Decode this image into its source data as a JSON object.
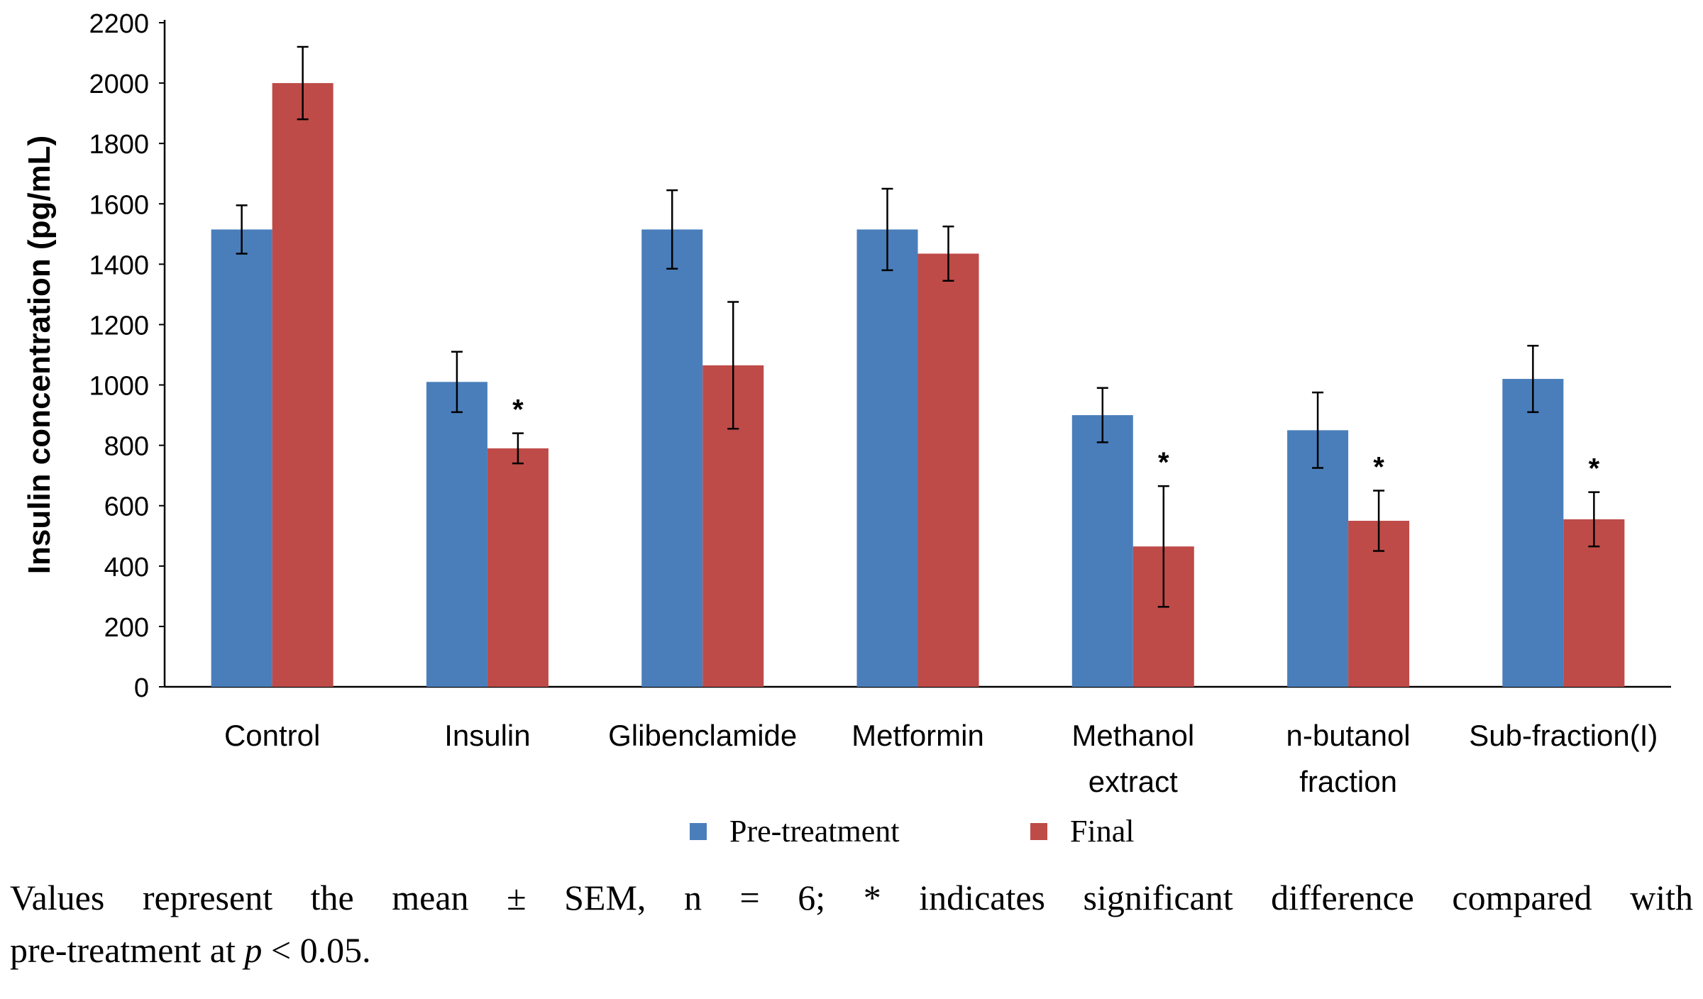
{
  "chart_data": {
    "type": "bar",
    "ylabel": "Insulin concentration (pg/mL)",
    "ylim": [
      0,
      2200
    ],
    "yticks": [
      0,
      200,
      400,
      600,
      800,
      1000,
      1200,
      1400,
      1600,
      1800,
      2000,
      2200
    ],
    "categories": [
      [
        "Control"
      ],
      [
        "Insulin"
      ],
      [
        "Glibenclamide"
      ],
      [
        "Metformin"
      ],
      [
        "Methanol",
        "extract"
      ],
      [
        "n-butanol",
        "fraction"
      ],
      [
        "Sub-fraction(I)"
      ]
    ],
    "series": [
      {
        "name": "Pre-treatment",
        "color": "#4a7ebb",
        "values": [
          1515,
          1010,
          1515,
          1515,
          900,
          850,
          1020
        ],
        "errors": [
          80,
          100,
          130,
          135,
          90,
          125,
          110
        ]
      },
      {
        "name": "Final",
        "color": "#be4b48",
        "values": [
          2000,
          790,
          1065,
          1435,
          465,
          550,
          555
        ],
        "errors": [
          120,
          50,
          210,
          90,
          200,
          100,
          90
        ]
      }
    ],
    "significance": [
      false,
      true,
      false,
      false,
      true,
      true,
      true
    ],
    "significance_marker": "*",
    "legend": {
      "position": "bottom"
    }
  },
  "caption": {
    "line1": "Values represent the mean ± SEM, n = 6; * indicates significant difference compared with",
    "line2_prefix": "pre-treatment at ",
    "line2_var": "p",
    "line2_suffix": " < 0.05."
  }
}
